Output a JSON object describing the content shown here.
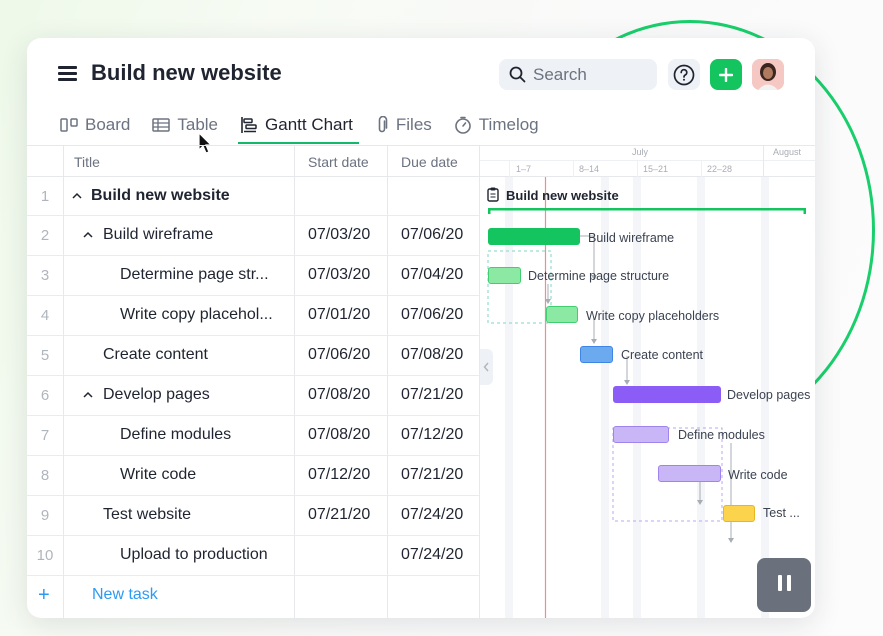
{
  "header": {
    "title": "Build new website",
    "search_placeholder": "Search"
  },
  "tabs": [
    {
      "label": "Board",
      "icon": "board-icon"
    },
    {
      "label": "Table",
      "icon": "table-icon"
    },
    {
      "label": "Gantt Chart",
      "icon": "gantt-icon",
      "active": true
    },
    {
      "label": "Files",
      "icon": "paperclip-icon"
    },
    {
      "label": "Timelog",
      "icon": "stopwatch-icon"
    }
  ],
  "grid": {
    "columns": [
      "Title",
      "Start date",
      "Due date"
    ],
    "rows": [
      {
        "num": "1",
        "title": "Build new website",
        "start": "",
        "due": ""
      },
      {
        "num": "2",
        "title": "Build wireframe",
        "start": "07/03/20",
        "due": "07/06/20"
      },
      {
        "num": "3",
        "title": "Determine page str...",
        "start": "07/03/20",
        "due": "07/04/20"
      },
      {
        "num": "4",
        "title": "Write copy placehol...",
        "start": "07/01/20",
        "due": "07/06/20"
      },
      {
        "num": "5",
        "title": "Create content",
        "start": "07/06/20",
        "due": "07/08/20"
      },
      {
        "num": "6",
        "title": "Develop pages",
        "start": "07/08/20",
        "due": "07/21/20"
      },
      {
        "num": "7",
        "title": "Define modules",
        "start": "07/08/20",
        "due": "07/12/20"
      },
      {
        "num": "8",
        "title": "Write code",
        "start": "07/12/20",
        "due": "07/21/20"
      },
      {
        "num": "9",
        "title": "Test website",
        "start": "07/21/20",
        "due": "07/24/20"
      },
      {
        "num": "10",
        "title": "Upload to production",
        "start": "",
        "due": "07/24/20"
      }
    ],
    "new_task_label": "New task"
  },
  "gantt": {
    "months": [
      "July",
      "August"
    ],
    "weeks": [
      "1–7",
      "8–14",
      "15–21",
      "22–28"
    ],
    "project_label": "Build new website",
    "bar_labels": [
      "Build wireframe",
      "Determine page structure",
      "Write copy placeholders",
      "Create content",
      "Develop pages",
      "Define modules",
      "Write code",
      "Test ..."
    ]
  },
  "colors": {
    "accent_green": "#14c45e",
    "link_blue": "#2b9af3",
    "develop_purple": "#8b5cf6",
    "test_yellow": "#fcd34d"
  }
}
